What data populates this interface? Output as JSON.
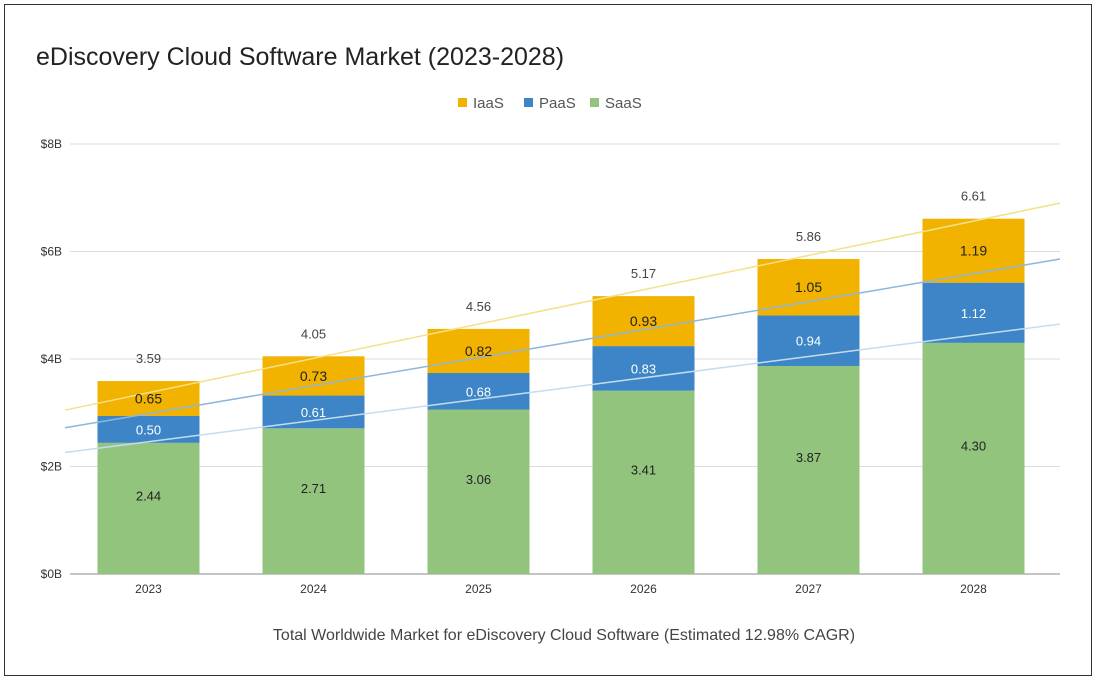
{
  "chart_data": {
    "type": "bar",
    "stacked": true,
    "title": "eDiscovery Cloud Software Market (2023-2028)",
    "xlabel": "Total Worldwide Market for eDiscovery Cloud Software (Estimated 12.98% CAGR)",
    "ylabel": "",
    "ylim": [
      0,
      8
    ],
    "yticks": [
      {
        "value": 0,
        "label": "$0B"
      },
      {
        "value": 2,
        "label": "$2B"
      },
      {
        "value": 4,
        "label": "$4B"
      },
      {
        "value": 6,
        "label": "$6B"
      },
      {
        "value": 8,
        "label": "$8B"
      }
    ],
    "grid": true,
    "legend_position": "top",
    "categories": [
      "2023",
      "2024",
      "2025",
      "2026",
      "2027",
      "2028"
    ],
    "series": [
      {
        "name": "SaaS",
        "color": "#93c47d",
        "values": [
          2.44,
          2.71,
          3.06,
          3.41,
          3.87,
          4.3
        ],
        "labels": [
          "2.44",
          "2.71",
          "3.06",
          "3.41",
          "3.87",
          "4.30"
        ]
      },
      {
        "name": "PaaS",
        "color": "#3d85c6",
        "values": [
          0.5,
          0.61,
          0.68,
          0.83,
          0.94,
          1.12
        ],
        "labels": [
          "0.50",
          "0.61",
          "0.68",
          "0.83",
          "0.94",
          "1.12"
        ]
      },
      {
        "name": "IaaS",
        "color": "#f1b300",
        "values": [
          0.65,
          0.73,
          0.82,
          0.93,
          1.05,
          1.19
        ],
        "labels": [
          "0.65",
          "0.73",
          "0.82",
          "0.93",
          "1.05",
          "1.19"
        ]
      }
    ],
    "legend_order": [
      "IaaS",
      "PaaS",
      "SaaS"
    ],
    "totals": [
      "3.59",
      "4.05",
      "4.56",
      "5.17",
      "5.86",
      "6.61"
    ],
    "trendlines": [
      {
        "color": "#f5e08a",
        "start": 3.05,
        "end": 6.9
      },
      {
        "color": "#8fb6d9",
        "start": 2.72,
        "end": 5.86
      },
      {
        "color": "#c5dcef",
        "start": 2.26,
        "end": 4.65
      }
    ]
  }
}
